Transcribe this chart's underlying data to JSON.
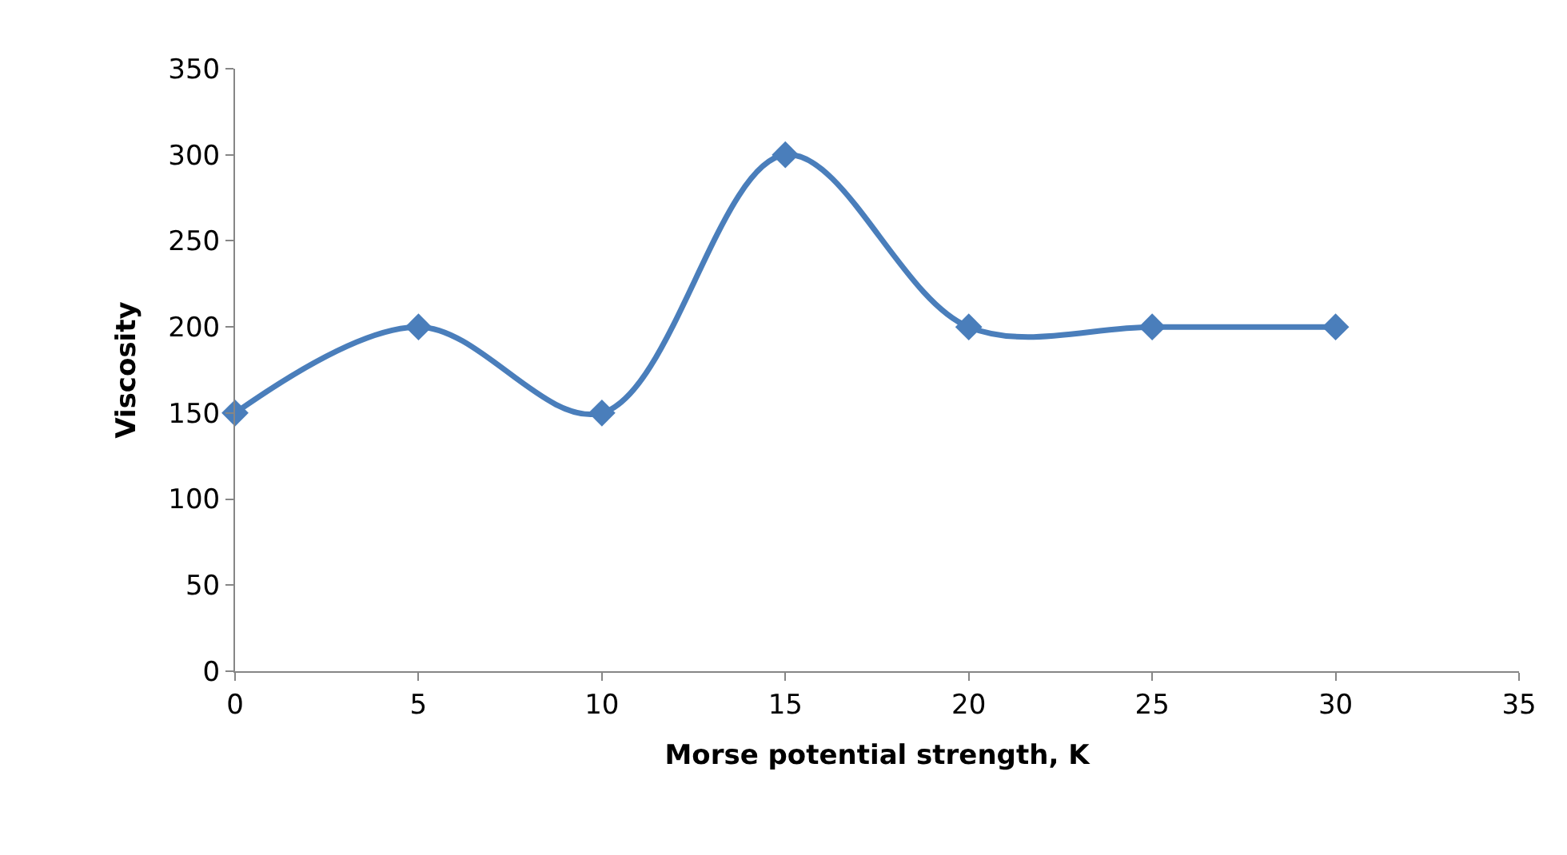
{
  "chart_data": {
    "type": "line",
    "xlabel": "Morse potential strength, K",
    "ylabel": "Viscosity",
    "x": [
      0,
      5,
      10,
      15,
      20,
      25,
      30
    ],
    "series": [
      {
        "color": "#4a7ebb",
        "values": [
          150,
          200,
          150,
          300,
          200,
          200,
          200
        ]
      }
    ],
    "xlim": [
      0,
      35
    ],
    "xticks": [
      0,
      5,
      10,
      15,
      20,
      25,
      30,
      35
    ],
    "ylim": [
      0,
      350
    ],
    "yticks": [
      0,
      50,
      100,
      150,
      200,
      250,
      300,
      350
    ],
    "marker": "diamond",
    "line_style": "solid"
  }
}
